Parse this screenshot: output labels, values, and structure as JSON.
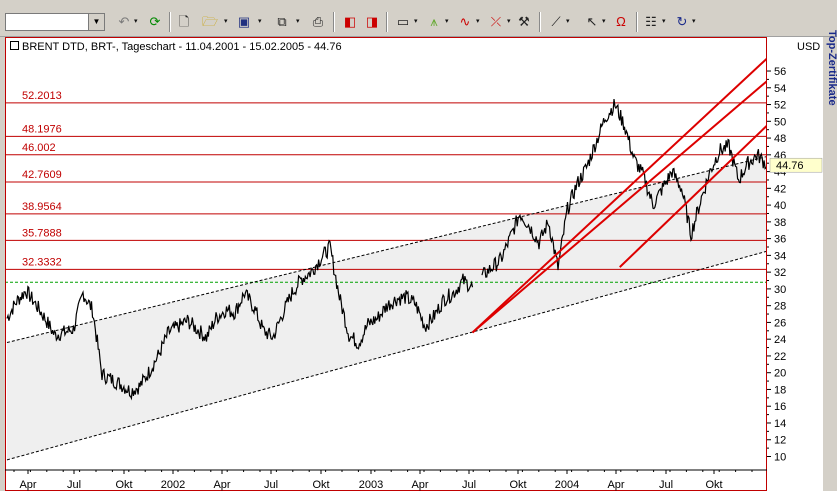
{
  "toolbar": {
    "symbol_input_value": "",
    "icons": [
      "refresh-icon",
      "new-document-icon",
      "open-folder-icon",
      "save-icon",
      "copy-icon",
      "print-icon",
      "chart-back-icon",
      "chart-forward-icon",
      "window-icon",
      "indicator-icon",
      "wave-icon",
      "trend-icon",
      "properties-icon",
      "draw-line-icon",
      "pointer-icon",
      "magnet-icon",
      "info-icon",
      "reload-icon"
    ]
  },
  "header": {
    "title": "BRENT DTD, BRT-, Tageschart - 11.04.2001 - 15.02.2005 - 44.76",
    "currency": "USD",
    "side_tab": "Top-Zertifikate"
  },
  "colors": {
    "price": "#000000",
    "fib_lines": "#c00000",
    "trend_lines": "#dd0000",
    "channel": "#000000",
    "support": "#00a000",
    "last_price_bg": "#ffffcc"
  },
  "chart_data": {
    "type": "line",
    "title": "BRENT DTD, BRT-, Tageschart - 11.04.2001 - 15.02.2005 - 44.76",
    "ylabel": "USD",
    "ylim": [
      9,
      57.5
    ],
    "grid": false,
    "y_ticks": [
      10,
      12,
      14,
      16,
      18,
      20,
      22,
      24,
      26,
      28,
      30,
      32,
      34,
      36,
      38,
      40,
      42,
      44,
      46,
      48,
      50,
      52,
      54,
      56
    ],
    "x_ticks": [
      "Apr",
      "Jul",
      "Okt",
      "2002",
      "Apr",
      "Jul",
      "Okt",
      "2003",
      "Apr",
      "Jul",
      "Okt",
      "2004",
      "Apr",
      "Jul",
      "Okt"
    ],
    "last_price": "44.76",
    "fib_levels": [
      {
        "label": "52.2013",
        "value": 52.2013
      },
      {
        "label": "48.1976",
        "value": 48.1976
      },
      {
        "label": "46.002",
        "value": 46.002
      },
      {
        "label": "42.7609",
        "value": 42.7609
      },
      {
        "label": "38.9564",
        "value": 38.9564
      },
      {
        "label": "35.7888",
        "value": 35.7888
      },
      {
        "label": "32.3332",
        "value": 32.3332
      }
    ],
    "support_level": 30.8,
    "series": [
      {
        "x": [
          0,
          4,
          8,
          12,
          16,
          20,
          24,
          28,
          32,
          36,
          40,
          44,
          48,
          52,
          56,
          60,
          64,
          68,
          72,
          76,
          80,
          84,
          88,
          92,
          96,
          100,
          104,
          108,
          112,
          116,
          120,
          124,
          128,
          132,
          136,
          140,
          144,
          148,
          152,
          156,
          160,
          164,
          168,
          172,
          176,
          180,
          184,
          188,
          192,
          196
        ],
        "values": [
          26.5,
          28.5,
          29.8,
          28.2,
          26.5,
          24.5,
          24.8,
          25.2,
          29.5,
          27.5,
          19.8,
          19.2,
          18.6,
          17.8,
          18.4,
          20.2,
          22.2,
          24.8,
          25.5,
          26.2,
          25.2,
          24.2,
          26.5,
          27.5,
          27.2,
          29.5,
          27.8,
          25.0,
          24.2,
          27.0,
          29.5,
          31.2,
          32.0,
          33.6,
          35.0,
          29.0,
          24.5,
          23.5,
          25.8,
          26.5,
          28.0,
          28.8,
          29.0,
          28.2,
          25.5,
          26.8,
          28.8,
          29.5,
          31.0,
          30.2
        ]
      },
      {
        "x": [
          200,
          204,
          208,
          212,
          216,
          220,
          224,
          228,
          232,
          236,
          240,
          244,
          248,
          252,
          256,
          260,
          264,
          268,
          272,
          276,
          280,
          284,
          288,
          292,
          296,
          300,
          304,
          308,
          312,
          316,
          320
        ],
        "values": [
          31.5,
          32.5,
          33.5,
          36.2,
          39.0,
          37.5,
          35.5,
          38.0,
          32.5,
          39.5,
          42.5,
          44.5,
          47.5,
          50.5,
          52.0,
          49.5,
          45.5,
          43.5,
          40.0,
          42.0,
          44.0,
          42.0,
          36.5,
          40.5,
          44.0,
          46.5,
          47.0,
          43.0,
          45.0,
          46.0,
          44.76
        ]
      }
    ],
    "trend_lines": [
      {
        "x": [
          196,
          320
        ],
        "values": [
          24.8,
          57.5
        ]
      },
      {
        "x": [
          196,
          320
        ],
        "values": [
          24.8,
          54.8
        ]
      },
      {
        "x": [
          258,
          320
        ],
        "values": [
          32.6,
          49.5
        ]
      }
    ],
    "channel_lines": [
      {
        "x": [
          0,
          320
        ],
        "values": [
          23.6,
          45.8
        ]
      },
      {
        "x": [
          0,
          320
        ],
        "values": [
          9.6,
          34.5
        ]
      }
    ]
  }
}
